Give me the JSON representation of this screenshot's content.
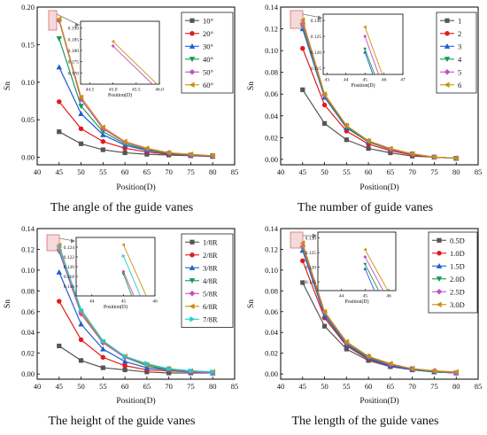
{
  "chart_data": [
    {
      "type": "line",
      "caption": "The angle of the guide vanes",
      "xlabel": "Position(D)",
      "ylabel": "Sn",
      "xlim": [
        40,
        85
      ],
      "ylim": [
        -0.01,
        0.2
      ],
      "xticks": [
        40,
        45,
        50,
        55,
        60,
        65,
        70,
        75,
        80,
        85
      ],
      "yticks": [
        0.0,
        0.05,
        0.1,
        0.15,
        0.2
      ],
      "ytick_labels": [
        "0.00",
        "0.05",
        "0.10",
        "0.15",
        "0.20"
      ],
      "legend_position": "top-right",
      "x": [
        45,
        50,
        55,
        60,
        65,
        70,
        75,
        80
      ],
      "series": [
        {
          "name": "10°",
          "color": "#555555",
          "marker": "square",
          "values": [
            0.034,
            0.018,
            0.01,
            0.006,
            0.004,
            0.003,
            0.002,
            0.001
          ]
        },
        {
          "name": "20°",
          "color": "#e31a1c",
          "marker": "circle",
          "values": [
            0.074,
            0.038,
            0.021,
            0.012,
            0.007,
            0.004,
            0.003,
            0.002
          ]
        },
        {
          "name": "30°",
          "color": "#1f5fd0",
          "marker": "triangle-up",
          "values": [
            0.12,
            0.058,
            0.03,
            0.016,
            0.009,
            0.005,
            0.003,
            0.002
          ]
        },
        {
          "name": "40°",
          "color": "#1a9a50",
          "marker": "triangle-down",
          "values": [
            0.158,
            0.068,
            0.034,
            0.018,
            0.01,
            0.005,
            0.003,
            0.002
          ]
        },
        {
          "name": "50°",
          "color": "#c050c0",
          "marker": "diamond",
          "values": [
            0.182,
            0.077,
            0.038,
            0.02,
            0.011,
            0.006,
            0.003,
            0.002
          ]
        },
        {
          "name": "60°",
          "color": "#c89010",
          "marker": "triangle-left",
          "values": [
            0.184,
            0.08,
            0.04,
            0.021,
            0.012,
            0.006,
            0.004,
            0.002
          ]
        }
      ],
      "inset": {
        "xlim": [
          44.3,
          46.0
        ],
        "ylim": [
          0.165,
          0.193
        ],
        "xticks": [
          44.5,
          45.0,
          45.5,
          46.0
        ],
        "xtick_labels": [
          "44.5",
          "45.0",
          "45.5",
          "46.0"
        ],
        "yticks": [
          0.17,
          0.175,
          0.18,
          0.185,
          0.19
        ],
        "ytick_labels": [
          "0.170",
          "0.175",
          "0.180",
          "0.185",
          "0.190"
        ],
        "xlabel": "Position(D)",
        "series": [
          {
            "name": "50°",
            "points": [
              [
                45.0,
                0.182
              ],
              [
                46.1,
                0.16
              ]
            ]
          },
          {
            "name": "60°",
            "points": [
              [
                45.0,
                0.184
              ],
              [
                46.1,
                0.162
              ]
            ]
          }
        ]
      }
    },
    {
      "type": "line",
      "caption": "The number of guide vanes",
      "xlabel": "Position(D)",
      "ylabel": "Sn",
      "xlim": [
        40,
        85
      ],
      "ylim": [
        -0.005,
        0.14
      ],
      "xticks": [
        40,
        45,
        50,
        55,
        60,
        65,
        70,
        75,
        80,
        85
      ],
      "yticks": [
        0.0,
        0.02,
        0.04,
        0.06,
        0.08,
        0.1,
        0.12,
        0.14
      ],
      "ytick_labels": [
        "0.00",
        "0.02",
        "0.04",
        "0.06",
        "0.08",
        "0.10",
        "0.12",
        "0.14"
      ],
      "legend_position": "top-right",
      "x": [
        45,
        50,
        55,
        60,
        65,
        70,
        75,
        80
      ],
      "series": [
        {
          "name": "1",
          "color": "#555555",
          "marker": "square",
          "values": [
            0.064,
            0.033,
            0.018,
            0.01,
            0.006,
            0.003,
            0.002,
            0.001
          ]
        },
        {
          "name": "2",
          "color": "#e31a1c",
          "marker": "circle",
          "values": [
            0.102,
            0.05,
            0.026,
            0.014,
            0.008,
            0.004,
            0.002,
            0.001
          ]
        },
        {
          "name": "3",
          "color": "#1f5fd0",
          "marker": "triangle-up",
          "values": [
            0.12,
            0.057,
            0.029,
            0.016,
            0.009,
            0.005,
            0.002,
            0.001
          ]
        },
        {
          "name": "4",
          "color": "#1a9a50",
          "marker": "triangle-down",
          "values": [
            0.122,
            0.058,
            0.03,
            0.016,
            0.009,
            0.005,
            0.002,
            0.001
          ]
        },
        {
          "name": "5",
          "color": "#c050c0",
          "marker": "diamond",
          "values": [
            0.125,
            0.059,
            0.031,
            0.017,
            0.009,
            0.005,
            0.002,
            0.001
          ]
        },
        {
          "name": "6",
          "color": "#c89010",
          "marker": "triangle-left",
          "values": [
            0.128,
            0.06,
            0.031,
            0.017,
            0.01,
            0.005,
            0.002,
            0.001
          ]
        }
      ],
      "inset": {
        "xlim": [
          42.8,
          47.0
        ],
        "ylim": [
          0.113,
          0.132
        ],
        "xticks": [
          43,
          44,
          45,
          46,
          47
        ],
        "xtick_labels": [
          "43",
          "44",
          "45",
          "46",
          "47"
        ],
        "yticks": [
          0.115,
          0.12,
          0.125,
          0.13
        ],
        "ytick_labels": [
          "0.115",
          "0.120",
          "0.125",
          "0.130"
        ],
        "xlabel": "Position(D)",
        "series": [
          {
            "name": "3",
            "points": [
              [
                45.0,
                0.12
              ],
              [
                45.6,
                0.11
              ]
            ]
          },
          {
            "name": "4",
            "points": [
              [
                45.0,
                0.121
              ],
              [
                45.7,
                0.11
              ]
            ]
          },
          {
            "name": "5",
            "points": [
              [
                45.0,
                0.125
              ],
              [
                45.9,
                0.11
              ]
            ]
          },
          {
            "name": "6",
            "points": [
              [
                45.0,
                0.128
              ],
              [
                46.1,
                0.11
              ]
            ]
          }
        ]
      }
    },
    {
      "type": "line",
      "caption": "The height of the guide vanes",
      "xlabel": "Position(D)",
      "ylabel": "Sn",
      "xlim": [
        40,
        85
      ],
      "ylim": [
        -0.005,
        0.14
      ],
      "xticks": [
        40,
        45,
        50,
        55,
        60,
        65,
        70,
        75,
        80,
        85
      ],
      "yticks": [
        0.0,
        0.02,
        0.04,
        0.06,
        0.08,
        0.1,
        0.12,
        0.14
      ],
      "ytick_labels": [
        "0.00",
        "0.02",
        "0.04",
        "0.06",
        "0.08",
        "0.10",
        "0.12",
        "0.14"
      ],
      "legend_position": "top-right",
      "x": [
        45,
        50,
        55,
        60,
        65,
        70,
        75,
        80
      ],
      "series": [
        {
          "name": "1/8R",
          "color": "#555555",
          "marker": "square",
          "values": [
            0.027,
            0.013,
            0.006,
            0.004,
            0.002,
            0.001,
            0.001,
            0.001
          ]
        },
        {
          "name": "2/8R",
          "color": "#e31a1c",
          "marker": "circle",
          "values": [
            0.07,
            0.033,
            0.016,
            0.008,
            0.004,
            0.003,
            0.002,
            0.001
          ]
        },
        {
          "name": "3/8R",
          "color": "#1f5fd0",
          "marker": "triangle-up",
          "values": [
            0.098,
            0.048,
            0.024,
            0.012,
            0.006,
            0.004,
            0.002,
            0.001
          ]
        },
        {
          "name": "4/8R",
          "color": "#1a9a50",
          "marker": "triangle-down",
          "values": [
            0.118,
            0.058,
            0.03,
            0.016,
            0.008,
            0.004,
            0.002,
            0.001
          ]
        },
        {
          "name": "5/8R",
          "color": "#c050c0",
          "marker": "diamond",
          "values": [
            0.119,
            0.058,
            0.03,
            0.016,
            0.009,
            0.005,
            0.002,
            0.001
          ]
        },
        {
          "name": "6/8R",
          "color": "#c89010",
          "marker": "triangle-left",
          "values": [
            0.124,
            0.06,
            0.031,
            0.017,
            0.009,
            0.005,
            0.003,
            0.002
          ]
        },
        {
          "name": "7/8R",
          "color": "#20c8d8",
          "marker": "triangle-right",
          "values": [
            0.122,
            0.062,
            0.032,
            0.017,
            0.01,
            0.005,
            0.003,
            0.002
          ]
        }
      ],
      "inset": {
        "xlim": [
          43.5,
          46.0
        ],
        "ylim": [
          0.114,
          0.126
        ],
        "xticks": [
          44,
          45,
          46
        ],
        "xtick_labels": [
          "44",
          "45",
          "46"
        ],
        "yticks": [
          0.116,
          0.118,
          0.12,
          0.122,
          0.124
        ],
        "ytick_labels": [
          "0.116",
          "0.118",
          "0.120",
          "0.122",
          "0.124"
        ],
        "xlabel": "Position(D)",
        "series": [
          {
            "name": "4/8R",
            "points": [
              [
                45.0,
                0.1185
              ],
              [
                45.5,
                0.11
              ]
            ]
          },
          {
            "name": "5/8R",
            "points": [
              [
                45.0,
                0.119
              ],
              [
                45.6,
                0.11
              ]
            ]
          },
          {
            "name": "7/8R",
            "points": [
              [
                45.0,
                0.1222
              ],
              [
                45.8,
                0.11
              ]
            ]
          },
          {
            "name": "6/8R",
            "points": [
              [
                45.0,
                0.1245
              ],
              [
                46.0,
                0.11
              ]
            ]
          }
        ]
      }
    },
    {
      "type": "line",
      "caption": "The length of the guide vanes",
      "xlabel": "Position(D)",
      "ylabel": "Sn",
      "xlim": [
        40,
        85
      ],
      "ylim": [
        -0.005,
        0.14
      ],
      "xticks": [
        40,
        45,
        50,
        55,
        60,
        65,
        70,
        75,
        80,
        85
      ],
      "yticks": [
        0.0,
        0.02,
        0.04,
        0.06,
        0.08,
        0.1,
        0.12,
        0.14
      ],
      "ytick_labels": [
        "0.00",
        "0.02",
        "0.04",
        "0.06",
        "0.08",
        "0.10",
        "0.12",
        "0.14"
      ],
      "legend_position": "top-right",
      "x": [
        45,
        50,
        55,
        60,
        65,
        70,
        75,
        80
      ],
      "series": [
        {
          "name": "0.5D",
          "color": "#555555",
          "marker": "square",
          "values": [
            0.088,
            0.046,
            0.024,
            0.013,
            0.007,
            0.004,
            0.002,
            0.001
          ]
        },
        {
          "name": "1.0D",
          "color": "#e31a1c",
          "marker": "circle",
          "values": [
            0.109,
            0.054,
            0.027,
            0.014,
            0.008,
            0.004,
            0.002,
            0.001
          ]
        },
        {
          "name": "1.5D",
          "color": "#1f5fd0",
          "marker": "triangle-up",
          "values": [
            0.119,
            0.056,
            0.028,
            0.015,
            0.008,
            0.004,
            0.002,
            0.001
          ]
        },
        {
          "name": "2.0D",
          "color": "#1a9a50",
          "marker": "triangle-down",
          "values": [
            0.121,
            0.058,
            0.029,
            0.016,
            0.009,
            0.005,
            0.002,
            0.001
          ]
        },
        {
          "name": "2.5D",
          "color": "#c050c0",
          "marker": "diamond",
          "values": [
            0.123,
            0.059,
            0.03,
            0.017,
            0.009,
            0.005,
            0.003,
            0.001
          ]
        },
        {
          "name": "3.0D",
          "color": "#c89010",
          "marker": "triangle-left",
          "values": [
            0.126,
            0.06,
            0.031,
            0.017,
            0.01,
            0.005,
            0.003,
            0.002
          ]
        }
      ],
      "inset": {
        "xlim": [
          43.0,
          46.3
        ],
        "ylim": [
          0.112,
          0.132
        ],
        "xticks": [
          44,
          45,
          46
        ],
        "xtick_labels": [
          "44",
          "45",
          "46"
        ],
        "yticks": [
          0.115,
          0.12,
          0.125,
          0.13
        ],
        "ytick_labels": [
          "0.115",
          "0.120",
          "0.125",
          "0.130"
        ],
        "xlabel": "Position(D)",
        "series": [
          {
            "name": "1.5D",
            "points": [
              [
                45.0,
                0.1195
              ],
              [
                45.5,
                0.11
              ]
            ]
          },
          {
            "name": "2.0D",
            "points": [
              [
                45.0,
                0.121
              ],
              [
                45.7,
                0.11
              ]
            ]
          },
          {
            "name": "2.5D",
            "points": [
              [
                45.0,
                0.1235
              ],
              [
                45.9,
                0.11
              ]
            ]
          },
          {
            "name": "3.0D",
            "points": [
              [
                45.0,
                0.126
              ],
              [
                46.1,
                0.11
              ]
            ]
          }
        ]
      }
    }
  ]
}
